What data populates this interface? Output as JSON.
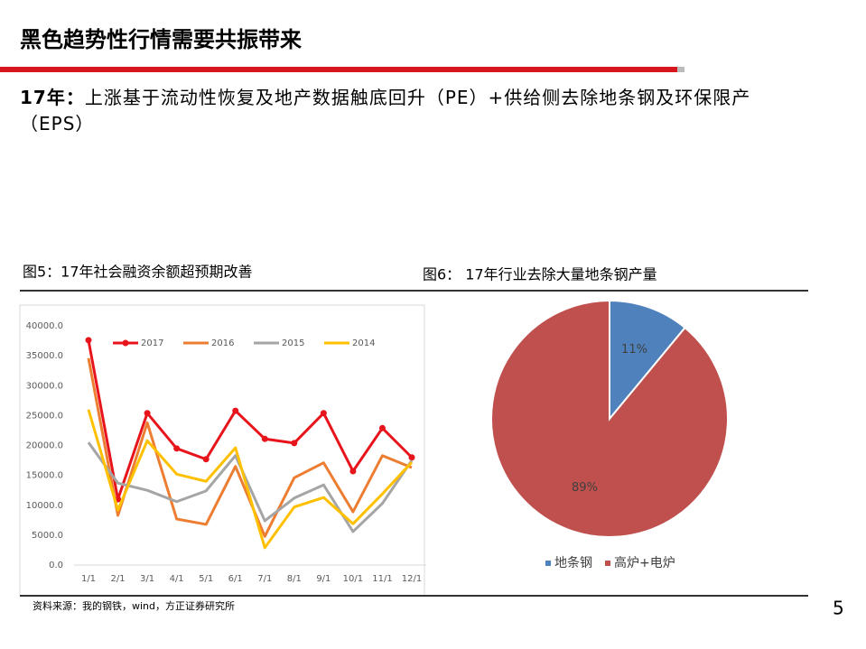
{
  "header": {
    "title": "黑色趋势性行情需要共振带来"
  },
  "subtitle": {
    "label": "17年：",
    "text": "上涨基于流动性恢复及地产数据触底回升（PE）+供给侧去除地条钢及环保限产（EPS）"
  },
  "chart_data": [
    {
      "type": "line",
      "title": "图5：17年社会融资余额超预期改善",
      "categories": [
        "1/1",
        "2/1",
        "3/1",
        "4/1",
        "5/1",
        "6/1",
        "7/1",
        "8/1",
        "9/1",
        "10/1",
        "11/1",
        "12/1"
      ],
      "series": [
        {
          "name": "2017",
          "color": "#e8141c",
          "marker": "circle",
          "values": [
            37600,
            11000,
            25400,
            19500,
            17700,
            25800,
            21100,
            20400,
            25400,
            15700,
            22900,
            18000
          ]
        },
        {
          "name": "2016",
          "color": "#ed7d31",
          "values": [
            34600,
            8300,
            23800,
            7700,
            6800,
            16500,
            4800,
            14600,
            17100,
            8900,
            18300,
            16300
          ]
        },
        {
          "name": "2015",
          "color": "#a5a5a5",
          "values": [
            20500,
            13700,
            12500,
            10600,
            12400,
            18300,
            7400,
            11200,
            13400,
            5600,
            10300,
            17500
          ]
        },
        {
          "name": "2014",
          "color": "#ffc000",
          "values": [
            26000,
            9200,
            20800,
            15200,
            14000,
            19600,
            2900,
            9700,
            11300,
            6900,
            11900,
            17200
          ]
        }
      ],
      "ylim": [
        0,
        40000
      ],
      "yticks": [
        {
          "value": 0,
          "label": "0.0"
        },
        {
          "value": 5000,
          "label": "5000.0"
        },
        {
          "value": 10000,
          "label": "10000.0"
        },
        {
          "value": 15000,
          "label": "15000.0"
        },
        {
          "value": 20000,
          "label": "20000.0"
        },
        {
          "value": 25000,
          "label": "25000.0"
        },
        {
          "value": 30000,
          "label": "30000.0"
        },
        {
          "value": 35000,
          "label": "35000.0"
        },
        {
          "value": 40000,
          "label": "40000.0"
        }
      ],
      "legend": "top"
    },
    {
      "type": "pie",
      "title": "图6： 17年行业去除大量地条钢产量",
      "categories": [
        "地条钢",
        "高炉+电炉"
      ],
      "values": [
        11,
        89
      ],
      "value_labels": [
        "11%",
        "89%"
      ],
      "colors": [
        "#4f81bd",
        "#c0504d"
      ],
      "legend": "bottom"
    }
  ],
  "source": "资料来源：我的钢铁，wind，方正证券研究所",
  "page_number": "5"
}
